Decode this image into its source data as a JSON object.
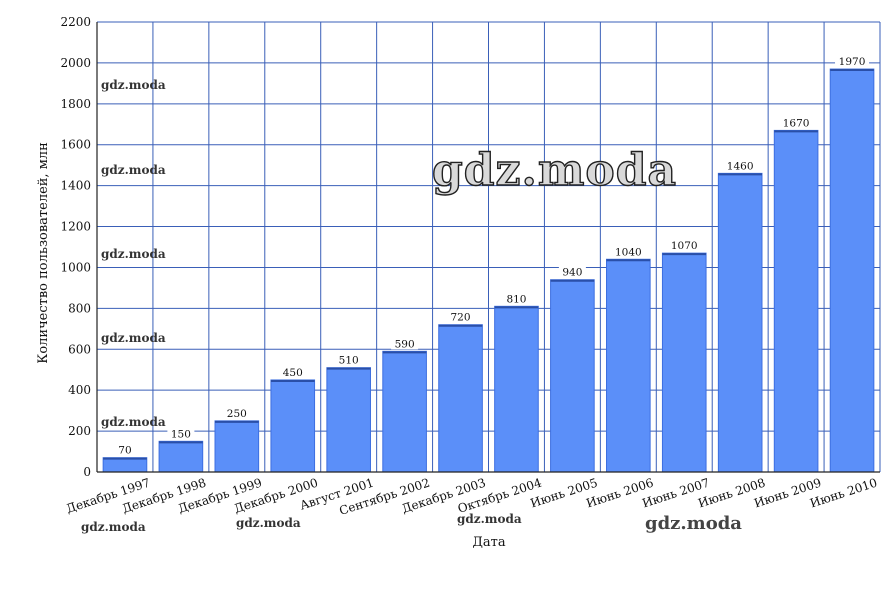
{
  "chart_data": {
    "type": "bar",
    "title": "",
    "xlabel": "Дата",
    "ylabel": "Количество пользователей, млн",
    "ylim": [
      0,
      2200
    ],
    "ytick_step": 200,
    "grid": true,
    "bar_color": "#5b8ff9",
    "categories": [
      "Декабрь 1997",
      "Декабрь 1998",
      "Декабрь 1999",
      "Декабрь 2000",
      "Август 2001",
      "Сентябрь 2002",
      "Декабрь 2003",
      "Октябрь 2004",
      "Июнь 2005",
      "Июнь 2006",
      "Июнь 2007",
      "Июнь 2008",
      "Июнь 2009",
      "Июнь 2010"
    ],
    "values": [
      70,
      150,
      250,
      450,
      510,
      590,
      720,
      810,
      940,
      1040,
      1070,
      1460,
      1670,
      1970
    ]
  },
  "watermarks": {
    "small": "gdz.moda",
    "big": "gdz.moda"
  }
}
